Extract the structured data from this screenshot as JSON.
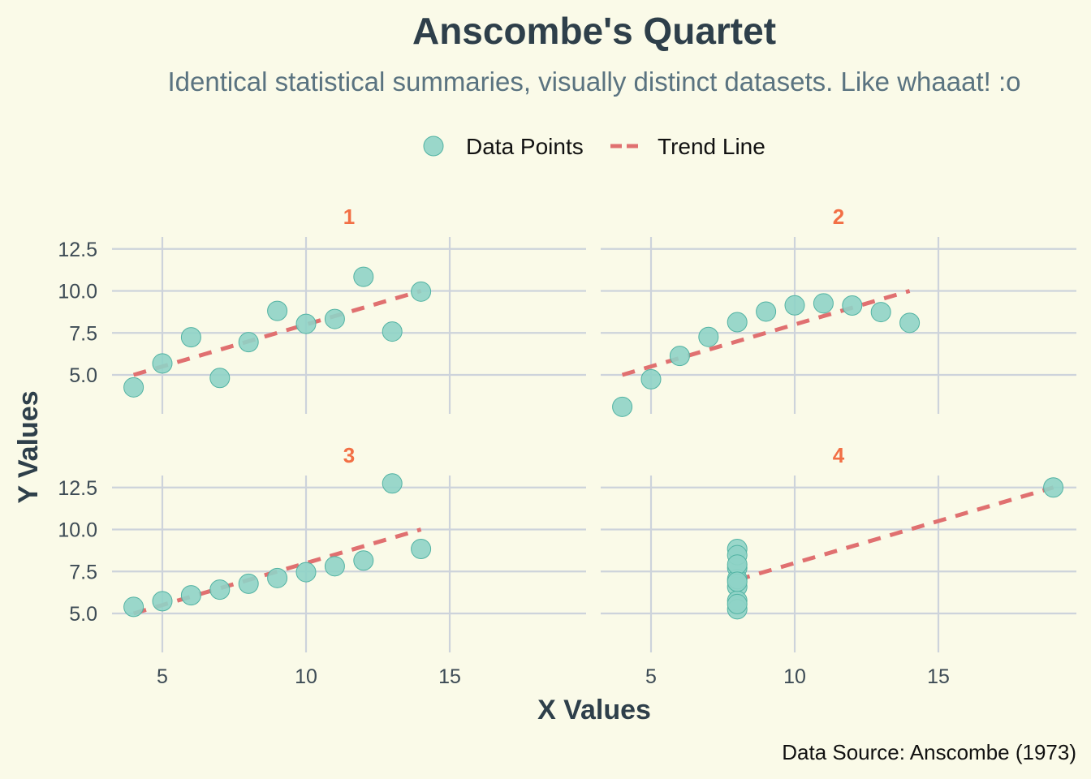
{
  "chart_data": {
    "type": "scatter",
    "title": "Anscombe's Quartet",
    "subtitle": "Identical statistical summaries, visually distinct datasets. Like whaaat! :o",
    "xlabel": "X Values",
    "ylabel": "Y Values",
    "caption": "Data Source: Anscombe (1973)",
    "legend": {
      "position": "top",
      "items": [
        {
          "label": "Data Points",
          "kind": "point",
          "color": "#8fd3c6"
        },
        {
          "label": "Trend Line",
          "kind": "dashed-line",
          "color": "#e07070"
        }
      ]
    },
    "grid": true,
    "xlim": [
      3.3,
      19.8
    ],
    "ylim": [
      2.5,
      13.5
    ],
    "x_ticks": [
      5,
      10,
      15
    ],
    "y_ticks": [
      5.0,
      7.5,
      10.0,
      12.5
    ],
    "y_tick_labels": [
      "5.0",
      "7.5",
      "10.0",
      "12.5"
    ],
    "colors": {
      "points": "#8fd3c6",
      "point_stroke": "#52b3a3",
      "trend": "#e07070",
      "strip": "#f26f45",
      "background": "#fafae8"
    },
    "panels": [
      {
        "label": "1",
        "x": [
          10,
          8,
          13,
          9,
          11,
          14,
          6,
          4,
          12,
          7,
          5
        ],
        "y": [
          8.04,
          6.95,
          7.58,
          8.81,
          8.33,
          9.96,
          7.24,
          4.26,
          10.84,
          4.82,
          5.68
        ],
        "trend": {
          "x": [
            4,
            14
          ],
          "y": [
            5.0,
            10.0
          ]
        }
      },
      {
        "label": "2",
        "x": [
          10,
          8,
          13,
          9,
          11,
          14,
          6,
          4,
          12,
          7,
          5
        ],
        "y": [
          9.14,
          8.14,
          8.74,
          8.77,
          9.26,
          8.1,
          6.13,
          3.1,
          9.13,
          7.26,
          4.74
        ],
        "trend": {
          "x": [
            4,
            14
          ],
          "y": [
            5.0,
            10.0
          ]
        }
      },
      {
        "label": "3",
        "x": [
          10,
          8,
          13,
          9,
          11,
          14,
          6,
          4,
          12,
          7,
          5
        ],
        "y": [
          7.46,
          6.77,
          12.74,
          7.11,
          7.81,
          8.84,
          6.08,
          5.39,
          8.15,
          6.42,
          5.73
        ],
        "trend": {
          "x": [
            4,
            14
          ],
          "y": [
            5.0,
            10.0
          ]
        }
      },
      {
        "label": "4",
        "x": [
          8,
          8,
          8,
          8,
          8,
          8,
          8,
          19,
          8,
          8,
          8
        ],
        "y": [
          6.58,
          5.76,
          7.71,
          8.84,
          8.47,
          7.04,
          5.25,
          12.5,
          5.56,
          7.91,
          6.89
        ],
        "trend": {
          "x": [
            8,
            19
          ],
          "y": [
            7.0,
            12.5
          ]
        }
      }
    ]
  }
}
